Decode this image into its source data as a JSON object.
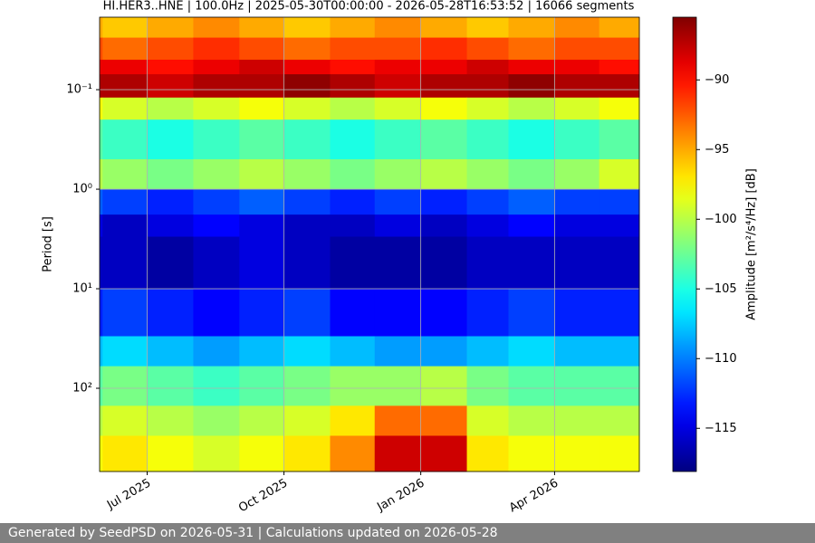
{
  "chart_data": {
    "type": "heatmap",
    "title": "HI.HER3..HNE | 100.0Hz | 2025-05-30T00:00:00 - 2026-05-28T16:53:52 | 16066 segments",
    "y_label": "Period [s]",
    "colorbar_label": "Amplitude [m²/s⁴/Hz] [dB]",
    "colormap": "jet",
    "x": [
      "2025-05-30",
      "2025-06",
      "2025-07",
      "2025-08",
      "2025-09",
      "2025-10",
      "2025-11",
      "2025-12",
      "2026-01",
      "2026-02",
      "2026-03",
      "2026-04",
      "2026-05"
    ],
    "xlim": [
      "2025-05-30",
      "2026-05-28"
    ],
    "xticks": [
      {
        "value": "2025-07",
        "label": "Jul 2025"
      },
      {
        "value": "2025-10",
        "label": "Oct 2025"
      },
      {
        "value": "2026-01",
        "label": "Jan 2026"
      },
      {
        "value": "2026-04",
        "label": "Apr 2026"
      }
    ],
    "y_bins": [
      0.0187,
      0.03,
      0.05,
      0.07,
      0.12,
      0.2,
      0.5,
      1,
      1.8,
      3,
      10,
      30,
      60,
      150,
      300,
      686
    ],
    "ylim": [
      0.0187,
      686
    ],
    "yscale": "log",
    "y_inverted": true,
    "yticks": [
      {
        "value": 0.1,
        "label": "10⁻¹"
      },
      {
        "value": 1,
        "label": "10⁰"
      },
      {
        "value": 10,
        "label": "10¹"
      },
      {
        "value": 100,
        "label": "10²"
      }
    ],
    "grid": true,
    "zlim": [
      -118.1,
      -85.5
    ],
    "zticks": [
      {
        "value": -90,
        "label": "−90"
      },
      {
        "value": -95,
        "label": "−95"
      },
      {
        "value": -100,
        "label": "−100"
      },
      {
        "value": -105,
        "label": "−105"
      },
      {
        "value": -110,
        "label": "−110"
      },
      {
        "value": -115,
        "label": "−115"
      }
    ],
    "z": [
      [
        -95,
        -96,
        -95,
        -94,
        -95,
        -96,
        -95,
        -94,
        -95,
        -96,
        -95,
        -94,
        -95
      ],
      [
        -92,
        -93,
        -92,
        -91,
        -92,
        -93,
        -92,
        -92,
        -91,
        -92,
        -93,
        -92,
        -92
      ],
      [
        -89,
        -89,
        -90,
        -89,
        -88,
        -89,
        -90,
        -89,
        -89,
        -88,
        -89,
        -89,
        -90
      ],
      [
        -87,
        -87,
        -88,
        -87,
        -87,
        -86,
        -87,
        -88,
        -87,
        -87,
        -86,
        -87,
        -87
      ],
      [
        -98,
        -99,
        -100,
        -99,
        -98,
        -99,
        -100,
        -99,
        -98,
        -99,
        -100,
        -99,
        -98
      ],
      [
        -103,
        -104,
        -105,
        -104,
        -103,
        -104,
        -105,
        -104,
        -103,
        -104,
        -105,
        -104,
        -103
      ],
      [
        -100,
        -101,
        -102,
        -101,
        -100,
        -101,
        -102,
        -101,
        -100,
        -101,
        -102,
        -101,
        -99
      ],
      [
        -111,
        -112,
        -113,
        -112,
        -111,
        -112,
        -113,
        -112,
        -113,
        -112,
        -111,
        -112,
        -112
      ],
      [
        -115,
        -116,
        -115,
        -114,
        -115,
        -116,
        -116,
        -115,
        -116,
        -115,
        -114,
        -115,
        -115
      ],
      [
        -116,
        -116,
        -117,
        -116,
        -115,
        -116,
        -117,
        -117,
        -117,
        -116,
        -116,
        -116,
        -116
      ],
      [
        -113,
        -112,
        -113,
        -114,
        -113,
        -112,
        -114,
        -114,
        -114,
        -113,
        -112,
        -113,
        -113
      ],
      [
        -108,
        -107,
        -108,
        -109,
        -108,
        -107,
        -108,
        -109,
        -109,
        -108,
        -107,
        -108,
        -108
      ],
      [
        -103,
        -102,
        -103,
        -104,
        -103,
        -102,
        -101,
        -101,
        -100,
        -102,
        -103,
        -103,
        -103
      ],
      [
        -100,
        -99,
        -100,
        -101,
        -100,
        -99,
        -97,
        -93,
        -93,
        -99,
        -100,
        -100,
        -100
      ],
      [
        -98,
        -97,
        -98,
        -99,
        -98,
        -97,
        -94,
        -88,
        -88,
        -97,
        -98,
        -98,
        -98
      ]
    ]
  },
  "footer": {
    "text": "Generated by SeedPSD on 2026-05-31 | Calculations updated on 2026-05-28"
  }
}
